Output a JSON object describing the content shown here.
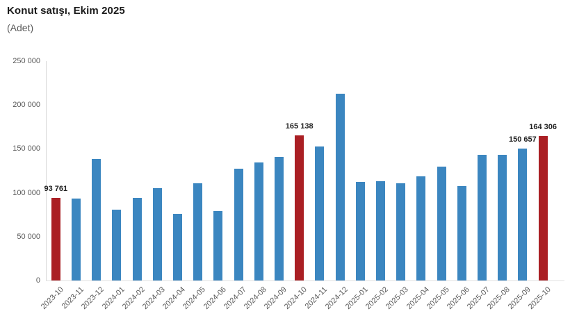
{
  "header": {
    "title": "Konut satışı, Ekim 2025",
    "subtitle": "(Adet)"
  },
  "chart_data": {
    "type": "bar",
    "title": "Konut satışı, Ekim 2025",
    "unit": "(Adet)",
    "categories": [
      "2023-10",
      "2023-11",
      "2023-12",
      "2024-01",
      "2024-02",
      "2024-03",
      "2024-04",
      "2024-05",
      "2024-06",
      "2024-07",
      "2024-08",
      "2024-09",
      "2024-10",
      "2024-11",
      "2024-12",
      "2025-01",
      "2025-02",
      "2025-03",
      "2025-04",
      "2025-05",
      "2025-06",
      "2025-07",
      "2025-08",
      "2025-09",
      "2025-10"
    ],
    "values": [
      93761,
      93178,
      138577,
      80308,
      93902,
      105476,
      75569,
      110588,
      79313,
      127088,
      134155,
      140919,
      165138,
      153014,
      212637,
      112173,
      112818,
      110795,
      118359,
      130025,
      107723,
      142858,
      143319,
      150657,
      164306
    ],
    "highlight_indices": [
      0,
      12,
      24
    ],
    "data_labels": [
      {
        "index": 0,
        "label": "93 761"
      },
      {
        "index": 12,
        "label": "165 138"
      },
      {
        "index": 23,
        "label": "150 657"
      },
      {
        "index": 24,
        "label": "164 306"
      }
    ],
    "yticks": [
      {
        "value": 0,
        "label": "0"
      },
      {
        "value": 50000,
        "label": "50 000"
      },
      {
        "value": 100000,
        "label": "100 000"
      },
      {
        "value": 150000,
        "label": "150 000"
      },
      {
        "value": 200000,
        "label": "200 000"
      },
      {
        "value": 250000,
        "label": "250 000"
      }
    ],
    "ylim": [
      0,
      250000
    ],
    "xlabel": "",
    "ylabel": "",
    "grid": false,
    "legend": false,
    "x_tick_rotation": -45,
    "colors": {
      "bar": "#3b86c0",
      "highlight": "#aa1f24",
      "axis_text": "#595959",
      "value_label_text": "#1f1f1f",
      "axis_line": "#d9d9d9"
    }
  }
}
